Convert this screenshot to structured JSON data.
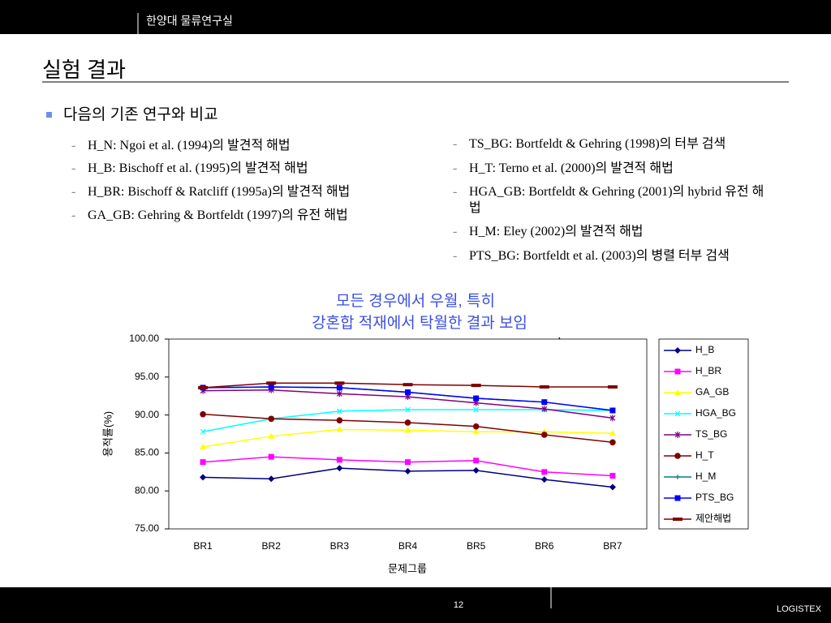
{
  "header": {
    "lab": "한양대 물류연구실"
  },
  "title": "실험 결과",
  "bullet": "다음의 기존 연구와 비교",
  "left_items": [
    "H_N: Ngoi et al. (1994)의 발견적 해법",
    "H_B: Bischoff et al. (1995)의 발견적 해법",
    "H_BR: Bischoff & Ratcliff (1995a)의 발견적 해법",
    "GA_GB: Gehring & Bortfeldt (1997)의 유전 해법"
  ],
  "right_items": [
    "TS_BG: Bortfeldt & Gehring (1998)의 터부 검색",
    "H_T: Terno et al. (2000)의 발견적 해법",
    "HGA_GB: Bortfeldt & Gehring (2001)의 hybrid 유전 해법",
    "H_M: Eley (2002)의 발견적 해법",
    "PTS_BG: Bortfeldt et al. (2003)의 병렬 터부 검색"
  ],
  "footer": {
    "page": "12",
    "brand": "LOGISTEX"
  },
  "chart_data": {
    "type": "line",
    "annotation": [
      "모든 경우에서 우월, 특히",
      "강혼합 적재에서 탁월한 결과 보임"
    ],
    "ylabel": "용적률(%)",
    "xlabel": "문제그룹",
    "categories": [
      "BR1",
      "BR2",
      "BR3",
      "BR4",
      "BR5",
      "BR6",
      "BR7"
    ],
    "ylim": [
      75,
      100
    ],
    "yticks": [
      {
        "value": 75,
        "label": "75.00"
      },
      {
        "value": 80,
        "label": "80.00"
      },
      {
        "value": 85,
        "label": "85.00"
      },
      {
        "value": 90,
        "label": "90.00"
      },
      {
        "value": 95,
        "label": "95.00"
      },
      {
        "value": 100,
        "label": "100.00"
      }
    ],
    "series": [
      {
        "name": "H_B",
        "color": "#000080",
        "marker": "diamond",
        "values": [
          81.8,
          81.6,
          83.0,
          82.6,
          82.7,
          81.5,
          80.5
        ]
      },
      {
        "name": "H_BR",
        "color": "#ff00ff",
        "marker": "square",
        "values": [
          83.8,
          84.5,
          84.1,
          83.8,
          84.0,
          82.5,
          82.0
        ]
      },
      {
        "name": "GA_GB",
        "color": "#ffff00",
        "marker": "triangle",
        "values": [
          85.8,
          87.2,
          88.1,
          88.0,
          87.8,
          87.8,
          87.6
        ]
      },
      {
        "name": "HGA_BG",
        "color": "#00ffff",
        "marker": "x",
        "values": [
          87.8,
          89.5,
          90.5,
          90.7,
          90.7,
          90.7,
          90.6
        ]
      },
      {
        "name": "TS_BG",
        "color": "#800080",
        "marker": "star",
        "values": [
          93.2,
          93.3,
          92.8,
          92.4,
          91.6,
          90.8,
          89.6
        ]
      },
      {
        "name": "H_T",
        "color": "#800000",
        "marker": "circle",
        "values": [
          90.1,
          89.5,
          89.3,
          89.0,
          88.5,
          87.4,
          86.4
        ]
      },
      {
        "name": "H_M",
        "color": "#008080",
        "marker": "plus",
        "values": [
          93.6,
          93.7,
          93.6,
          93.0,
          92.2,
          91.7,
          90.6
        ]
      },
      {
        "name": "PTS_BG",
        "color": "#0000ff",
        "marker": "square",
        "values": [
          93.6,
          93.7,
          93.6,
          93.0,
          92.2,
          91.7,
          90.6
        ]
      },
      {
        "name": "제안해법",
        "color": "#800000",
        "marker": "dash",
        "values": [
          93.6,
          94.2,
          94.2,
          94.0,
          93.9,
          93.7,
          93.7
        ]
      }
    ]
  }
}
